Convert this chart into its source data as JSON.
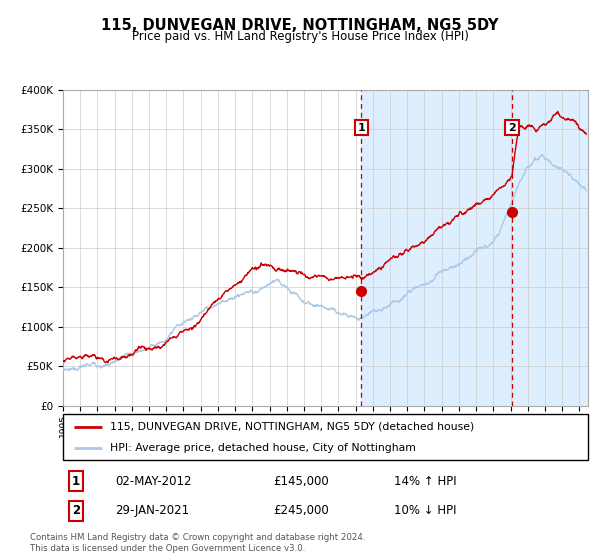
{
  "title": "115, DUNVEGAN DRIVE, NOTTINGHAM, NG5 5DY",
  "subtitle": "Price paid vs. HM Land Registry's House Price Index (HPI)",
  "legend_line1": "115, DUNVEGAN DRIVE, NOTTINGHAM, NG5 5DY (detached house)",
  "legend_line2": "HPI: Average price, detached house, City of Nottingham",
  "annotation1_date": "02-MAY-2012",
  "annotation1_price": "£145,000",
  "annotation1_hpi": "14% ↑ HPI",
  "annotation1_year": 2012.33,
  "annotation1_value": 145000,
  "annotation2_date": "29-JAN-2021",
  "annotation2_price": "£245,000",
  "annotation2_hpi": "10% ↓ HPI",
  "annotation2_year": 2021.08,
  "annotation2_value": 245000,
  "footer": "Contains HM Land Registry data © Crown copyright and database right 2024.\nThis data is licensed under the Open Government Licence v3.0.",
  "ylim": [
    0,
    400000
  ],
  "xlim_start": 1995,
  "xlim_end": 2025.5,
  "red_color": "#cc0000",
  "blue_color": "#aac8e8",
  "shade_color": "#ddeeff",
  "shaded_start": 2012.33
}
